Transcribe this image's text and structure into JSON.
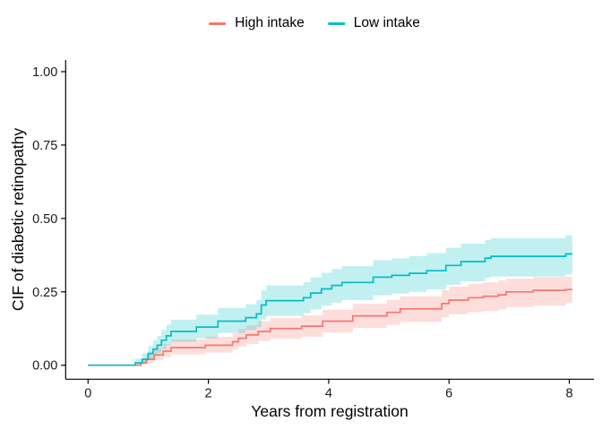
{
  "figure": {
    "kind": "cif-step-plot"
  },
  "legend": {
    "items": [
      {
        "label": "High intake",
        "color": "#F8766D"
      },
      {
        "label": "Low intake",
        "color": "#00BFC4"
      }
    ]
  },
  "axes": {
    "x": {
      "title": "Years from registration",
      "tick_values": [
        0,
        2,
        4,
        6,
        8
      ],
      "tick_labels": [
        "0",
        "2",
        "4",
        "6",
        "8"
      ]
    },
    "y": {
      "title": "CIF of diabetic retinopathy",
      "tick_values": [
        0,
        0.25,
        0.5,
        0.75,
        1.0
      ],
      "tick_labels": [
        "0.00",
        "0.25",
        "0.50",
        "0.75",
        "1.00"
      ]
    }
  },
  "chart_data": {
    "type": "line",
    "curve_style": "step",
    "title": "",
    "xlabel": "Years from registration",
    "ylabel": "CIF of diabetic retinopathy",
    "xlim": [
      0,
      8.4
    ],
    "ylim": [
      0,
      1.0
    ],
    "grid": false,
    "legend_position": "top",
    "band_opacity": 0.24,
    "series": [
      {
        "name": "High intake",
        "color": "#F8766D",
        "end_t": 8.05,
        "points": [
          {
            "t": 0.0,
            "v": 0.0,
            "lo": 0.0,
            "hi": 0.0
          },
          {
            "t": 0.88,
            "v": 0.008,
            "lo": 0.002,
            "hi": 0.02
          },
          {
            "t": 0.97,
            "v": 0.02,
            "lo": 0.008,
            "hi": 0.038
          },
          {
            "t": 1.1,
            "v": 0.035,
            "lo": 0.018,
            "hi": 0.058
          },
          {
            "t": 1.25,
            "v": 0.048,
            "lo": 0.028,
            "hi": 0.073
          },
          {
            "t": 1.38,
            "v": 0.06,
            "lo": 0.037,
            "hi": 0.088
          },
          {
            "t": 1.95,
            "v": 0.068,
            "lo": 0.043,
            "hi": 0.097
          },
          {
            "t": 2.4,
            "v": 0.08,
            "lo": 0.053,
            "hi": 0.11
          },
          {
            "t": 2.5,
            "v": 0.092,
            "lo": 0.063,
            "hi": 0.124
          },
          {
            "t": 2.63,
            "v": 0.103,
            "lo": 0.072,
            "hi": 0.136
          },
          {
            "t": 2.83,
            "v": 0.115,
            "lo": 0.082,
            "hi": 0.15
          },
          {
            "t": 3.03,
            "v": 0.125,
            "lo": 0.09,
            "hi": 0.161
          },
          {
            "t": 3.55,
            "v": 0.133,
            "lo": 0.097,
            "hi": 0.17
          },
          {
            "t": 3.9,
            "v": 0.15,
            "lo": 0.111,
            "hi": 0.189
          },
          {
            "t": 4.4,
            "v": 0.168,
            "lo": 0.127,
            "hi": 0.209
          },
          {
            "t": 4.97,
            "v": 0.18,
            "lo": 0.137,
            "hi": 0.222
          },
          {
            "t": 5.19,
            "v": 0.192,
            "lo": 0.147,
            "hi": 0.235
          },
          {
            "t": 5.88,
            "v": 0.21,
            "lo": 0.163,
            "hi": 0.255
          },
          {
            "t": 6.0,
            "v": 0.222,
            "lo": 0.174,
            "hi": 0.268
          },
          {
            "t": 6.32,
            "v": 0.23,
            "lo": 0.181,
            "hi": 0.277
          },
          {
            "t": 6.57,
            "v": 0.235,
            "lo": 0.185,
            "hi": 0.282
          },
          {
            "t": 6.82,
            "v": 0.24,
            "lo": 0.19,
            "hi": 0.288
          },
          {
            "t": 6.95,
            "v": 0.25,
            "lo": 0.198,
            "hi": 0.295
          },
          {
            "t": 7.4,
            "v": 0.255,
            "lo": 0.203,
            "hi": 0.3
          },
          {
            "t": 7.94,
            "v": 0.258,
            "lo": 0.213,
            "hi": 0.302
          }
        ]
      },
      {
        "name": "Low intake",
        "color": "#00BFC4",
        "end_t": 8.05,
        "points": [
          {
            "t": 0.0,
            "v": 0.0,
            "lo": 0.0,
            "hi": 0.0
          },
          {
            "t": 0.78,
            "v": 0.008,
            "lo": 0.002,
            "hi": 0.022
          },
          {
            "t": 0.9,
            "v": 0.02,
            "lo": 0.008,
            "hi": 0.04
          },
          {
            "t": 1.0,
            "v": 0.04,
            "lo": 0.02,
            "hi": 0.065
          },
          {
            "t": 1.08,
            "v": 0.055,
            "lo": 0.032,
            "hi": 0.085
          },
          {
            "t": 1.15,
            "v": 0.068,
            "lo": 0.042,
            "hi": 0.1
          },
          {
            "t": 1.22,
            "v": 0.085,
            "lo": 0.055,
            "hi": 0.12
          },
          {
            "t": 1.3,
            "v": 0.1,
            "lo": 0.068,
            "hi": 0.138
          },
          {
            "t": 1.38,
            "v": 0.115,
            "lo": 0.08,
            "hi": 0.155
          },
          {
            "t": 1.8,
            "v": 0.13,
            "lo": 0.092,
            "hi": 0.172
          },
          {
            "t": 2.16,
            "v": 0.15,
            "lo": 0.11,
            "hi": 0.195
          },
          {
            "t": 2.62,
            "v": 0.162,
            "lo": 0.12,
            "hi": 0.208
          },
          {
            "t": 2.8,
            "v": 0.175,
            "lo": 0.13,
            "hi": 0.222
          },
          {
            "t": 2.88,
            "v": 0.205,
            "lo": 0.155,
            "hi": 0.255
          },
          {
            "t": 2.96,
            "v": 0.22,
            "lo": 0.168,
            "hi": 0.272
          },
          {
            "t": 3.58,
            "v": 0.23,
            "lo": 0.177,
            "hi": 0.283
          },
          {
            "t": 3.7,
            "v": 0.246,
            "lo": 0.19,
            "hi": 0.3
          },
          {
            "t": 3.88,
            "v": 0.26,
            "lo": 0.203,
            "hi": 0.315
          },
          {
            "t": 4.05,
            "v": 0.272,
            "lo": 0.213,
            "hi": 0.328
          },
          {
            "t": 4.22,
            "v": 0.282,
            "lo": 0.222,
            "hi": 0.338
          },
          {
            "t": 4.74,
            "v": 0.3,
            "lo": 0.238,
            "hi": 0.358
          },
          {
            "t": 5.05,
            "v": 0.306,
            "lo": 0.244,
            "hi": 0.364
          },
          {
            "t": 5.34,
            "v": 0.313,
            "lo": 0.25,
            "hi": 0.372
          },
          {
            "t": 5.63,
            "v": 0.322,
            "lo": 0.258,
            "hi": 0.382
          },
          {
            "t": 5.95,
            "v": 0.34,
            "lo": 0.274,
            "hi": 0.4
          },
          {
            "t": 6.2,
            "v": 0.353,
            "lo": 0.286,
            "hi": 0.414
          },
          {
            "t": 6.6,
            "v": 0.365,
            "lo": 0.297,
            "hi": 0.427
          },
          {
            "t": 6.7,
            "v": 0.371,
            "lo": 0.302,
            "hi": 0.433
          },
          {
            "t": 7.94,
            "v": 0.379,
            "lo": 0.309,
            "hi": 0.443
          }
        ]
      }
    ]
  }
}
